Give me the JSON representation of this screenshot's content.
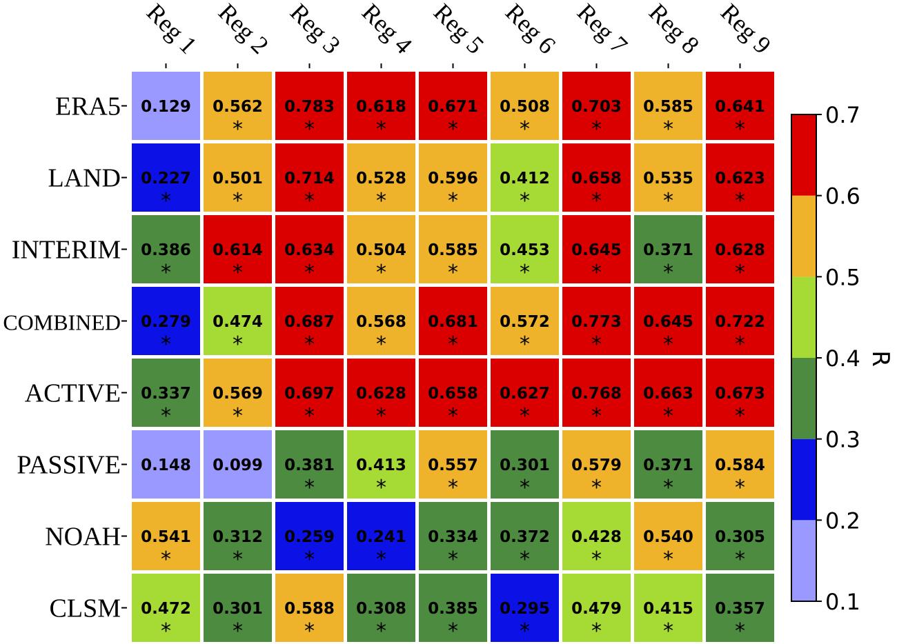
{
  "chart_data": {
    "type": "heatmap",
    "columns": [
      "Reg 1",
      "Reg 2",
      "Reg 3",
      "Reg 4",
      "Reg 5",
      "Reg 6",
      "Reg 7",
      "Reg 8",
      "Reg 9"
    ],
    "rows": [
      "ERA5",
      "LAND",
      "INTERIM",
      "COMBINED",
      "ACTIVE",
      "PASSIVE",
      "NOAH",
      "CLSM"
    ],
    "values": [
      [
        "0.129",
        "0.562",
        "0.783",
        "0.618",
        "0.671",
        "0.508",
        "0.703",
        "0.585",
        "0.641"
      ],
      [
        "0.227",
        "0.501",
        "0.714",
        "0.528",
        "0.596",
        "0.412",
        "0.658",
        "0.535",
        "0.623"
      ],
      [
        "0.386",
        "0.614",
        "0.634",
        "0.504",
        "0.585",
        "0.453",
        "0.645",
        "0.371",
        "0.628"
      ],
      [
        "0.279",
        "0.474",
        "0.687",
        "0.568",
        "0.681",
        "0.572",
        "0.773",
        "0.645",
        "0.722"
      ],
      [
        "0.337",
        "0.569",
        "0.697",
        "0.628",
        "0.658",
        "0.627",
        "0.768",
        "0.663",
        "0.673"
      ],
      [
        "0.148",
        "0.099",
        "0.381",
        "0.413",
        "0.557",
        "0.301",
        "0.579",
        "0.371",
        "0.584"
      ],
      [
        "0.541",
        "0.312",
        "0.259",
        "0.241",
        "0.334",
        "0.372",
        "0.428",
        "0.540",
        "0.305"
      ],
      [
        "0.472",
        "0.301",
        "0.588",
        "0.308",
        "0.385",
        "0.295",
        "0.479",
        "0.415",
        "0.357"
      ]
    ],
    "significant": [
      [
        false,
        true,
        true,
        true,
        true,
        true,
        true,
        true,
        true
      ],
      [
        true,
        true,
        true,
        true,
        true,
        true,
        true,
        true,
        true
      ],
      [
        true,
        true,
        true,
        true,
        true,
        true,
        true,
        true,
        true
      ],
      [
        true,
        true,
        true,
        true,
        true,
        true,
        true,
        true,
        true
      ],
      [
        true,
        true,
        true,
        true,
        true,
        true,
        true,
        true,
        true
      ],
      [
        false,
        false,
        true,
        true,
        true,
        true,
        true,
        true,
        true
      ],
      [
        true,
        true,
        true,
        true,
        true,
        true,
        true,
        true,
        true
      ],
      [
        true,
        true,
        true,
        true,
        true,
        true,
        true,
        true,
        true
      ]
    ],
    "significance_marker": "*",
    "colorbar": {
      "label": "R",
      "range": [
        0.1,
        0.7
      ],
      "ticks": [
        "0.7",
        "0.6",
        "0.5",
        "0.4",
        "0.3",
        "0.2",
        "0.1"
      ],
      "bins": [
        {
          "from": 0.1,
          "to": 0.2,
          "color": "#9999ff"
        },
        {
          "from": 0.2,
          "to": 0.3,
          "color": "#0c12e6"
        },
        {
          "from": 0.3,
          "to": 0.4,
          "color": "#4d8c40"
        },
        {
          "from": 0.4,
          "to": 0.5,
          "color": "#a6da35"
        },
        {
          "from": 0.5,
          "to": 0.6,
          "color": "#eeb22b"
        },
        {
          "from": 0.6,
          "to": 0.7,
          "color": "#db0000"
        }
      ],
      "placement": "right"
    }
  }
}
